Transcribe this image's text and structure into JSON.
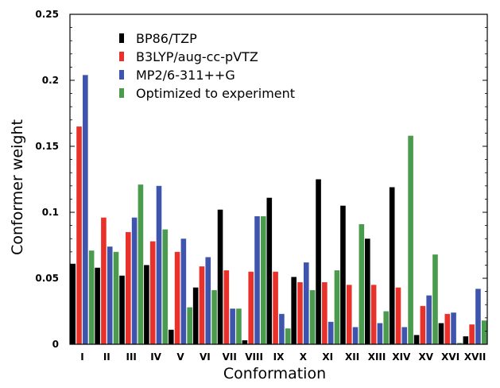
{
  "chart_data": {
    "type": "bar",
    "title": "",
    "xlabel": "Conformation",
    "ylabel": "Conformer weight",
    "ylim": [
      0,
      0.25
    ],
    "yticks": [
      "0",
      "0.05",
      "0.1",
      "0.15",
      "0.2",
      "0.25"
    ],
    "ytick_values": [
      0,
      0.05,
      0.1,
      0.15,
      0.2,
      0.25
    ],
    "grid": false,
    "legend_position": "top-center",
    "categories": [
      "I",
      "II",
      "III",
      "IV",
      "V",
      "VI",
      "VII",
      "VIII",
      "IX",
      "X",
      "XI",
      "XII",
      "XIII",
      "XIV",
      "XV",
      "XVI",
      "XVII"
    ],
    "series": [
      {
        "name": "BP86/TZP",
        "color": "#000000",
        "values": [
          0.061,
          0.058,
          0.052,
          0.06,
          0.011,
          0.043,
          0.102,
          0.003,
          0.111,
          0.051,
          0.125,
          0.105,
          0.08,
          0.119,
          0.007,
          0.016,
          0.006
        ]
      },
      {
        "name": "B3LYP/aug-cc-pVTZ",
        "color": "#e8312a",
        "values": [
          0.165,
          0.096,
          0.085,
          0.078,
          0.07,
          0.059,
          0.056,
          0.055,
          0.055,
          0.047,
          0.047,
          0.045,
          0.045,
          0.043,
          0.029,
          0.023,
          0.015
        ]
      },
      {
        "name": "MP2/6-311++G",
        "color": "#3f55ad",
        "values": [
          0.204,
          0.074,
          0.096,
          0.12,
          0.08,
          0.066,
          0.027,
          0.097,
          0.023,
          0.062,
          0.017,
          0.013,
          0.016,
          0.013,
          0.037,
          0.024,
          0.042
        ]
      },
      {
        "name": "Optimized to experiment",
        "color": "#4a9b4e",
        "values": [
          0.071,
          0.07,
          0.121,
          0.087,
          0.028,
          0.041,
          0.027,
          0.097,
          0.012,
          0.041,
          0.056,
          0.091,
          0.025,
          0.158,
          0.068,
          0.001,
          0.018
        ]
      }
    ]
  }
}
